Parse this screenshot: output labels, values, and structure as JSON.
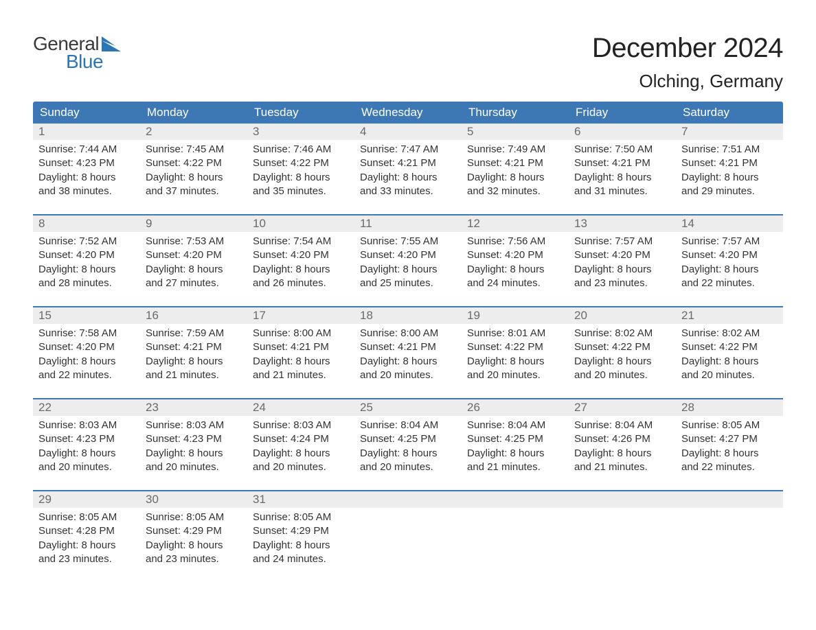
{
  "brand": {
    "word1": "General",
    "word2": "Blue",
    "flag_color": "#2e75b6",
    "text_color_dark": "#3a3a3a"
  },
  "title": "December 2024",
  "location": "Olching, Germany",
  "colors": {
    "header_bg": "#3d78b4",
    "header_text": "#ffffff",
    "daynum_bg": "#ededed",
    "daynum_text": "#6a6a6a",
    "body_text": "#333333",
    "week_border": "#3d78b4",
    "page_bg": "#ffffff"
  },
  "typography": {
    "title_fontsize": 40,
    "location_fontsize": 26,
    "header_fontsize": 17,
    "cell_fontsize": 15
  },
  "day_names": [
    "Sunday",
    "Monday",
    "Tuesday",
    "Wednesday",
    "Thursday",
    "Friday",
    "Saturday"
  ],
  "weeks": [
    [
      {
        "n": "1",
        "sunrise": "Sunrise: 7:44 AM",
        "sunset": "Sunset: 4:23 PM",
        "day1": "Daylight: 8 hours",
        "day2": "and 38 minutes."
      },
      {
        "n": "2",
        "sunrise": "Sunrise: 7:45 AM",
        "sunset": "Sunset: 4:22 PM",
        "day1": "Daylight: 8 hours",
        "day2": "and 37 minutes."
      },
      {
        "n": "3",
        "sunrise": "Sunrise: 7:46 AM",
        "sunset": "Sunset: 4:22 PM",
        "day1": "Daylight: 8 hours",
        "day2": "and 35 minutes."
      },
      {
        "n": "4",
        "sunrise": "Sunrise: 7:47 AM",
        "sunset": "Sunset: 4:21 PM",
        "day1": "Daylight: 8 hours",
        "day2": "and 33 minutes."
      },
      {
        "n": "5",
        "sunrise": "Sunrise: 7:49 AM",
        "sunset": "Sunset: 4:21 PM",
        "day1": "Daylight: 8 hours",
        "day2": "and 32 minutes."
      },
      {
        "n": "6",
        "sunrise": "Sunrise: 7:50 AM",
        "sunset": "Sunset: 4:21 PM",
        "day1": "Daylight: 8 hours",
        "day2": "and 31 minutes."
      },
      {
        "n": "7",
        "sunrise": "Sunrise: 7:51 AM",
        "sunset": "Sunset: 4:21 PM",
        "day1": "Daylight: 8 hours",
        "day2": "and 29 minutes."
      }
    ],
    [
      {
        "n": "8",
        "sunrise": "Sunrise: 7:52 AM",
        "sunset": "Sunset: 4:20 PM",
        "day1": "Daylight: 8 hours",
        "day2": "and 28 minutes."
      },
      {
        "n": "9",
        "sunrise": "Sunrise: 7:53 AM",
        "sunset": "Sunset: 4:20 PM",
        "day1": "Daylight: 8 hours",
        "day2": "and 27 minutes."
      },
      {
        "n": "10",
        "sunrise": "Sunrise: 7:54 AM",
        "sunset": "Sunset: 4:20 PM",
        "day1": "Daylight: 8 hours",
        "day2": "and 26 minutes."
      },
      {
        "n": "11",
        "sunrise": "Sunrise: 7:55 AM",
        "sunset": "Sunset: 4:20 PM",
        "day1": "Daylight: 8 hours",
        "day2": "and 25 minutes."
      },
      {
        "n": "12",
        "sunrise": "Sunrise: 7:56 AM",
        "sunset": "Sunset: 4:20 PM",
        "day1": "Daylight: 8 hours",
        "day2": "and 24 minutes."
      },
      {
        "n": "13",
        "sunrise": "Sunrise: 7:57 AM",
        "sunset": "Sunset: 4:20 PM",
        "day1": "Daylight: 8 hours",
        "day2": "and 23 minutes."
      },
      {
        "n": "14",
        "sunrise": "Sunrise: 7:57 AM",
        "sunset": "Sunset: 4:20 PM",
        "day1": "Daylight: 8 hours",
        "day2": "and 22 minutes."
      }
    ],
    [
      {
        "n": "15",
        "sunrise": "Sunrise: 7:58 AM",
        "sunset": "Sunset: 4:20 PM",
        "day1": "Daylight: 8 hours",
        "day2": "and 22 minutes."
      },
      {
        "n": "16",
        "sunrise": "Sunrise: 7:59 AM",
        "sunset": "Sunset: 4:21 PM",
        "day1": "Daylight: 8 hours",
        "day2": "and 21 minutes."
      },
      {
        "n": "17",
        "sunrise": "Sunrise: 8:00 AM",
        "sunset": "Sunset: 4:21 PM",
        "day1": "Daylight: 8 hours",
        "day2": "and 21 minutes."
      },
      {
        "n": "18",
        "sunrise": "Sunrise: 8:00 AM",
        "sunset": "Sunset: 4:21 PM",
        "day1": "Daylight: 8 hours",
        "day2": "and 20 minutes."
      },
      {
        "n": "19",
        "sunrise": "Sunrise: 8:01 AM",
        "sunset": "Sunset: 4:22 PM",
        "day1": "Daylight: 8 hours",
        "day2": "and 20 minutes."
      },
      {
        "n": "20",
        "sunrise": "Sunrise: 8:02 AM",
        "sunset": "Sunset: 4:22 PM",
        "day1": "Daylight: 8 hours",
        "day2": "and 20 minutes."
      },
      {
        "n": "21",
        "sunrise": "Sunrise: 8:02 AM",
        "sunset": "Sunset: 4:22 PM",
        "day1": "Daylight: 8 hours",
        "day2": "and 20 minutes."
      }
    ],
    [
      {
        "n": "22",
        "sunrise": "Sunrise: 8:03 AM",
        "sunset": "Sunset: 4:23 PM",
        "day1": "Daylight: 8 hours",
        "day2": "and 20 minutes."
      },
      {
        "n": "23",
        "sunrise": "Sunrise: 8:03 AM",
        "sunset": "Sunset: 4:23 PM",
        "day1": "Daylight: 8 hours",
        "day2": "and 20 minutes."
      },
      {
        "n": "24",
        "sunrise": "Sunrise: 8:03 AM",
        "sunset": "Sunset: 4:24 PM",
        "day1": "Daylight: 8 hours",
        "day2": "and 20 minutes."
      },
      {
        "n": "25",
        "sunrise": "Sunrise: 8:04 AM",
        "sunset": "Sunset: 4:25 PM",
        "day1": "Daylight: 8 hours",
        "day2": "and 20 minutes."
      },
      {
        "n": "26",
        "sunrise": "Sunrise: 8:04 AM",
        "sunset": "Sunset: 4:25 PM",
        "day1": "Daylight: 8 hours",
        "day2": "and 21 minutes."
      },
      {
        "n": "27",
        "sunrise": "Sunrise: 8:04 AM",
        "sunset": "Sunset: 4:26 PM",
        "day1": "Daylight: 8 hours",
        "day2": "and 21 minutes."
      },
      {
        "n": "28",
        "sunrise": "Sunrise: 8:05 AM",
        "sunset": "Sunset: 4:27 PM",
        "day1": "Daylight: 8 hours",
        "day2": "and 22 minutes."
      }
    ],
    [
      {
        "n": "29",
        "sunrise": "Sunrise: 8:05 AM",
        "sunset": "Sunset: 4:28 PM",
        "day1": "Daylight: 8 hours",
        "day2": "and 23 minutes."
      },
      {
        "n": "30",
        "sunrise": "Sunrise: 8:05 AM",
        "sunset": "Sunset: 4:29 PM",
        "day1": "Daylight: 8 hours",
        "day2": "and 23 minutes."
      },
      {
        "n": "31",
        "sunrise": "Sunrise: 8:05 AM",
        "sunset": "Sunset: 4:29 PM",
        "day1": "Daylight: 8 hours",
        "day2": "and 24 minutes."
      },
      null,
      null,
      null,
      null
    ]
  ]
}
